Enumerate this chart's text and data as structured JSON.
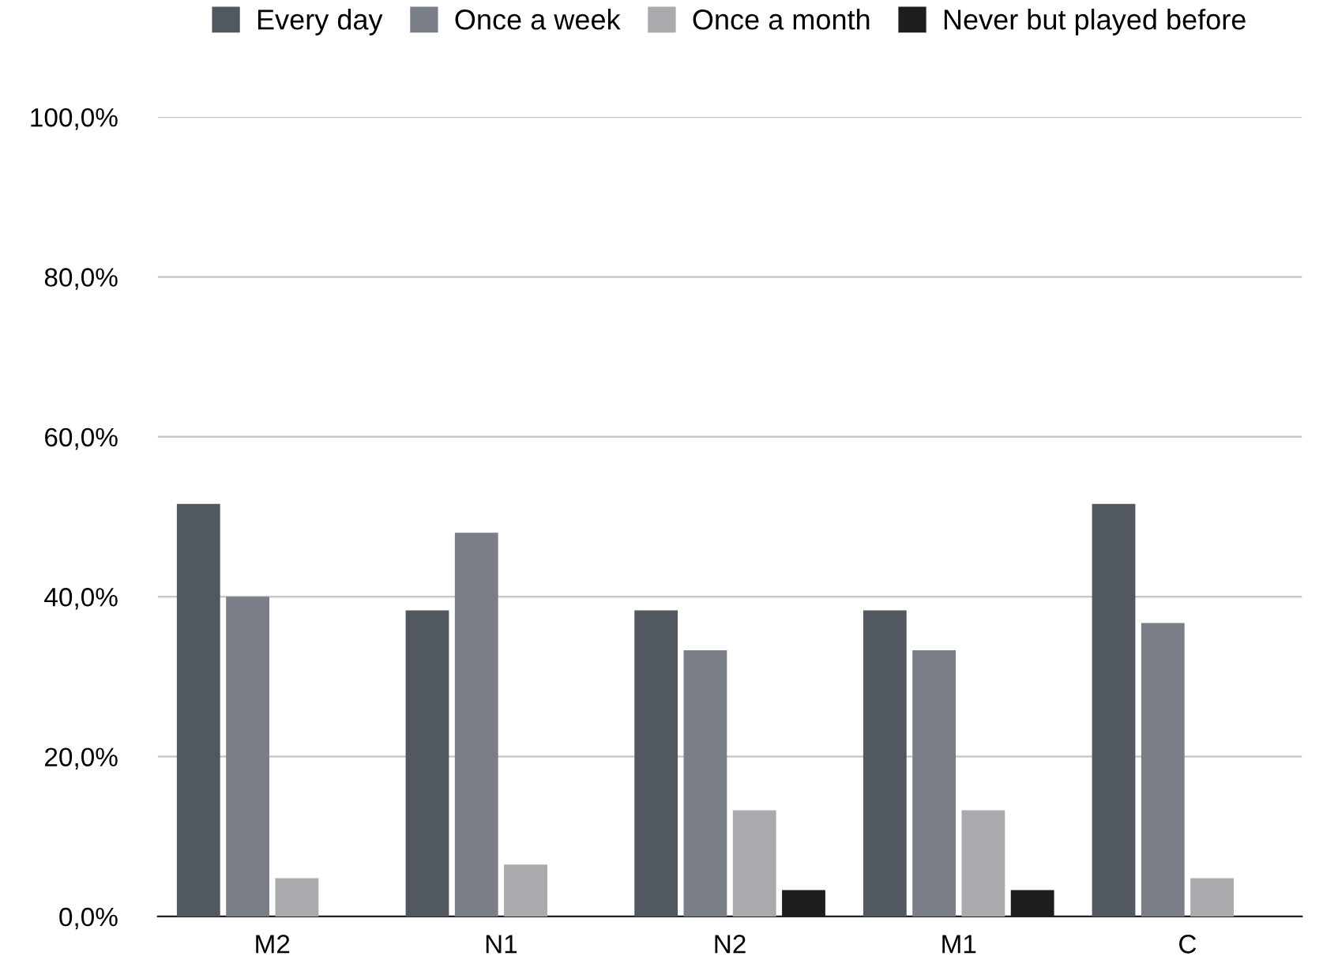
{
  "chart_data": {
    "type": "bar",
    "categories": [
      "M2",
      "N1",
      "N2",
      "M1",
      "C"
    ],
    "series": [
      {
        "name": "Every day",
        "color": "#525860",
        "values": [
          51.6,
          38.3,
          38.3,
          38.3,
          51.6
        ]
      },
      {
        "name": "Once a week",
        "color": "#7a7f87",
        "values": [
          40.0,
          48.0,
          33.3,
          33.3,
          36.7
        ]
      },
      {
        "name": "Once a month",
        "color": "#a8aaad",
        "values": [
          4.8,
          6.5,
          13.3,
          13.3,
          4.8
        ]
      },
      {
        "name": "Never but played before",
        "color": "#1e1e1e",
        "values": [
          0,
          0,
          3.3,
          3.3,
          0
        ]
      }
    ],
    "ylim": [
      0,
      100
    ],
    "yticks": [
      {
        "value": 0,
        "label": "0,0%"
      },
      {
        "value": 20,
        "label": "20,0%"
      },
      {
        "value": 40,
        "label": "40,0%"
      },
      {
        "value": 60,
        "label": "60,0%"
      },
      {
        "value": 80,
        "label": "80,0%"
      },
      {
        "value": 100,
        "label": "100,0%"
      }
    ],
    "grid": "y",
    "legend": "top"
  }
}
